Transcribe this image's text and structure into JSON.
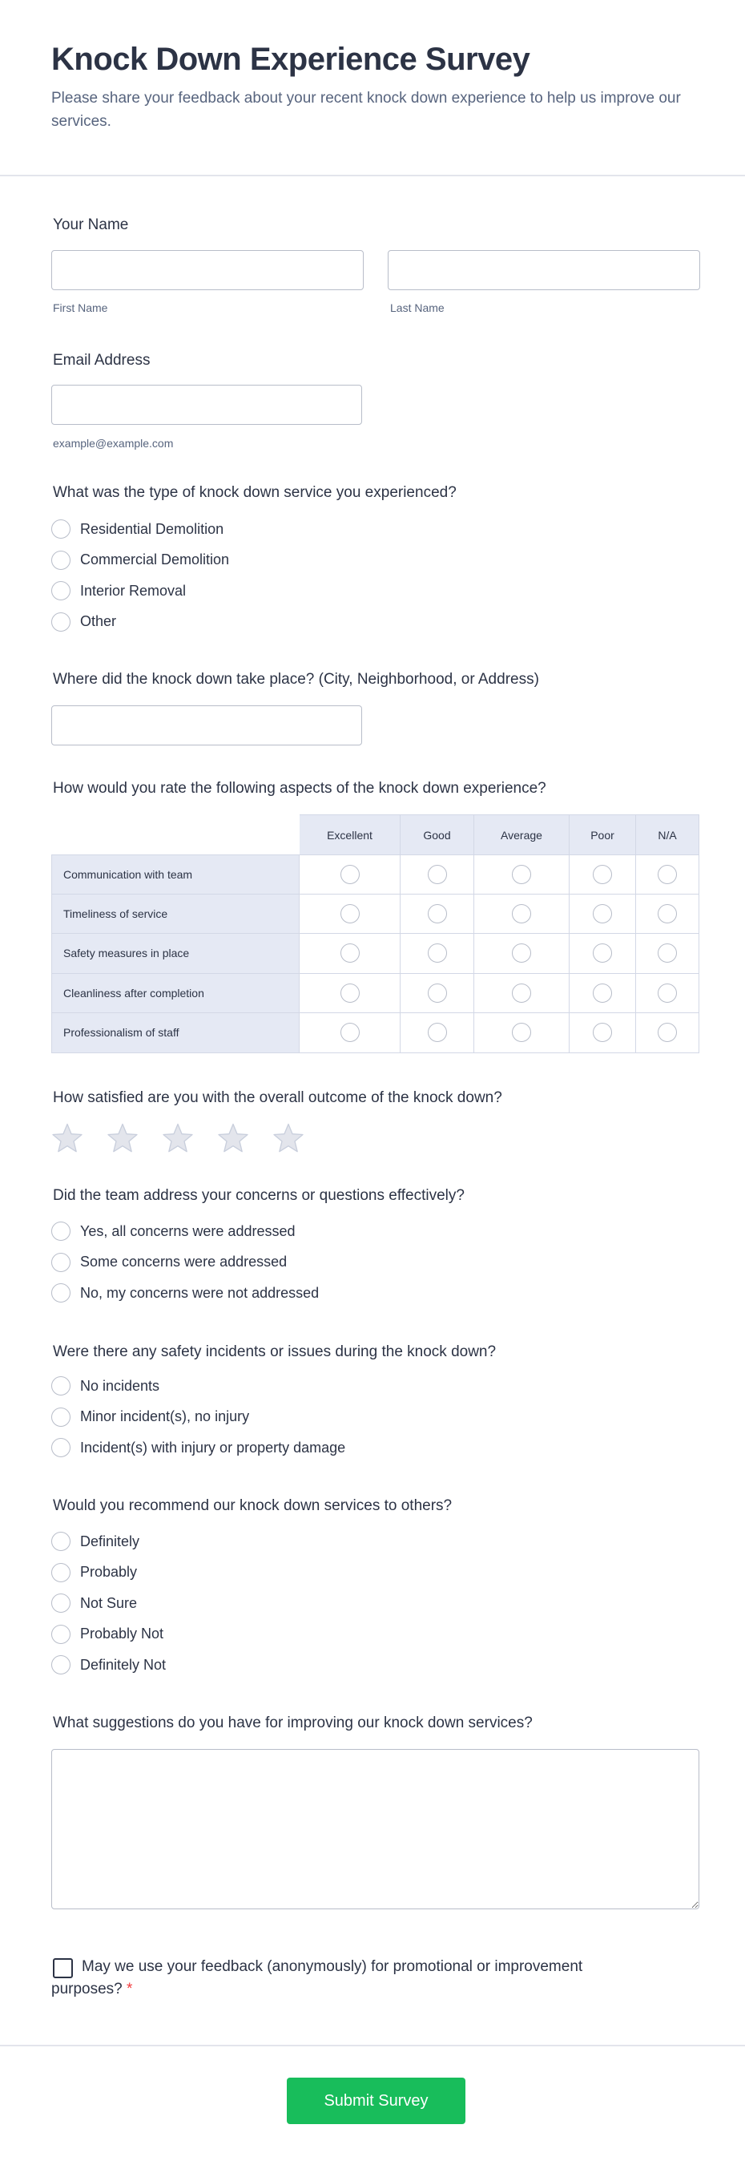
{
  "header": {
    "title": "Knock Down Experience Survey",
    "subtitle": "Please share your feedback about your recent knock down experience to help us improve our services."
  },
  "name": {
    "label": "Your Name",
    "first_label": "First Name",
    "last_label": "Last Name",
    "first_value": "",
    "last_value": ""
  },
  "email": {
    "label": "Email Address",
    "hint": "example@example.com",
    "value": ""
  },
  "service_type": {
    "question": "What was the type of knock down service you experienced?",
    "options": [
      "Residential Demolition",
      "Commercial Demolition",
      "Interior Removal",
      "Other"
    ]
  },
  "location": {
    "question": "Where did the knock down take place? (City, Neighborhood, or Address)",
    "value": ""
  },
  "matrix": {
    "question": "How would you rate the following aspects of the knock down experience?",
    "columns": [
      "Excellent",
      "Good",
      "Average",
      "Poor",
      "N/A"
    ],
    "rows": [
      "Communication with team",
      "Timeliness of service",
      "Safety measures in place",
      "Cleanliness after completion",
      "Professionalism of staff"
    ]
  },
  "satisfaction": {
    "question": "How satisfied are you with the overall outcome of the knock down?",
    "stars_total": 5,
    "stars_selected": 0,
    "star_color": "#e3e5ec"
  },
  "concerns": {
    "question": "Did the team address your concerns or questions effectively?",
    "options": [
      "Yes, all concerns were addressed",
      "Some concerns were addressed",
      "No, my concerns were not addressed"
    ]
  },
  "safety": {
    "question": "Were there any safety incidents or issues during the knock down?",
    "options": [
      "No incidents",
      "Minor incident(s), no injury",
      "Incident(s) with injury or property damage"
    ]
  },
  "recommend": {
    "question": "Would you recommend our knock down services to others?",
    "options": [
      "Definitely",
      "Probably",
      "Not Sure",
      "Probably Not",
      "Definitely Not"
    ]
  },
  "suggestions": {
    "question": "What suggestions do you have for improving our knock down services?",
    "value": ""
  },
  "consent": {
    "label": "May we use your feedback (anonymously) for promotional or improvement purposes?",
    "required_mark": "*",
    "checked": false
  },
  "submit": {
    "label": "Submit Survey",
    "color": "#18bd5b"
  }
}
